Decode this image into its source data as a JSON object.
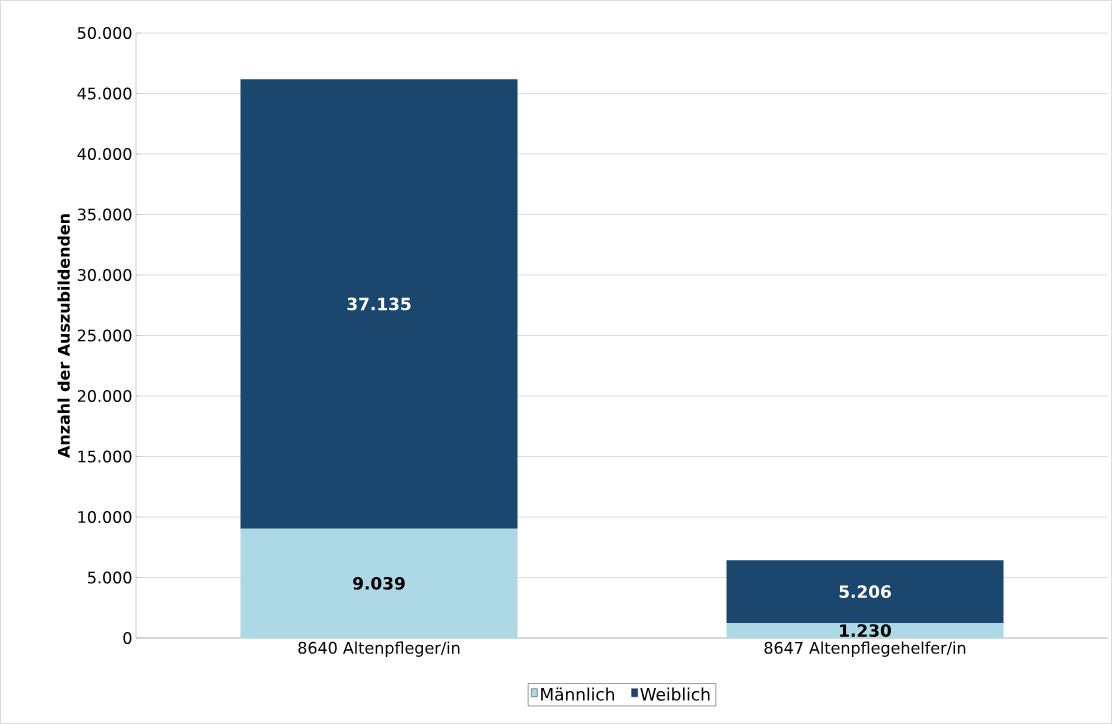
{
  "chart_data": {
    "type": "bar",
    "stacked": true,
    "ylabel": "Anzahl der Auszubildenden",
    "categories": [
      "8640 Altenpfleger/in",
      "8647 Altenpflegehelfer/in"
    ],
    "series": [
      {
        "name": "Männlich",
        "color": "#add8e6",
        "values": [
          9039,
          1230
        ],
        "value_labels": [
          "9.039",
          "1.230"
        ]
      },
      {
        "name": "Weiblich",
        "color": "#1b466d",
        "values": [
          37135,
          5206
        ],
        "value_labels": [
          "37.135",
          "5.206"
        ]
      }
    ],
    "ylim": [
      0,
      50000
    ],
    "yticks": [
      {
        "value": 0,
        "label": "0"
      },
      {
        "value": 5000,
        "label": "5.000"
      },
      {
        "value": 10000,
        "label": "10.000"
      },
      {
        "value": 15000,
        "label": "15.000"
      },
      {
        "value": 20000,
        "label": "20.000"
      },
      {
        "value": 25000,
        "label": "25.000"
      },
      {
        "value": 30000,
        "label": "30.000"
      },
      {
        "value": 35000,
        "label": "35.000"
      },
      {
        "value": 40000,
        "label": "40.000"
      },
      {
        "value": 45000,
        "label": "45.000"
      },
      {
        "value": 50000,
        "label": "50.000"
      }
    ],
    "grid": "y",
    "legend": "bottom"
  }
}
